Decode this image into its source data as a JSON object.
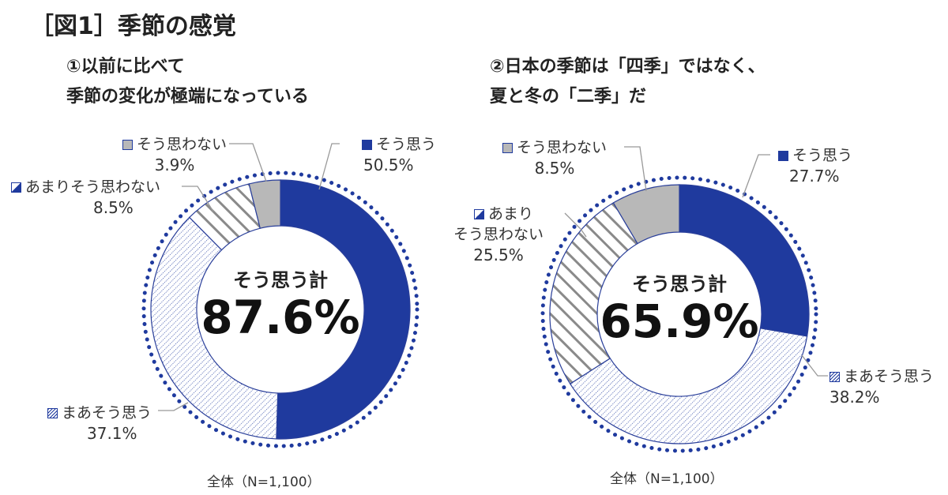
{
  "title": "［図1］季節の感覚",
  "chart_data": [
    {
      "type": "pie",
      "subtitle_lines": [
        "①以前に比べて",
        "季節の変化が極端になっている"
      ],
      "categories": [
        "そう思う",
        "まあそう思う",
        "あまりそう思わない",
        "そう思わない"
      ],
      "values": [
        50.5,
        37.1,
        8.5,
        3.9
      ],
      "value_labels": [
        "50.5%",
        "37.1%",
        "8.5%",
        "3.9%"
      ],
      "center_label": "そう思う計",
      "center_value": "87.6%",
      "note": "全体（N=1,100）"
    },
    {
      "type": "pie",
      "subtitle_lines": [
        "②日本の季節は「四季」ではなく、",
        "夏と冬の「二季」だ"
      ],
      "categories": [
        "そう思う",
        "まあそう思う",
        "あまり\nそう思わない",
        "そう思わない"
      ],
      "label_lines": [
        "そう思う",
        "まあそう思う",
        "あまり",
        "そう思わない"
      ],
      "label_line2": "そう思わない",
      "values": [
        27.7,
        38.2,
        25.5,
        8.5
      ],
      "value_labels": [
        "27.7%",
        "38.2%",
        "25.5%",
        "8.5%"
      ],
      "center_label": "そう思う計",
      "center_value": "65.9%",
      "note": "全体（N=1,100）"
    }
  ],
  "colors": {
    "solid": "#1f3a9e",
    "gray": "#b8b8b8",
    "stripe": "#8a8a8a",
    "outline": "#2a3f9a"
  }
}
